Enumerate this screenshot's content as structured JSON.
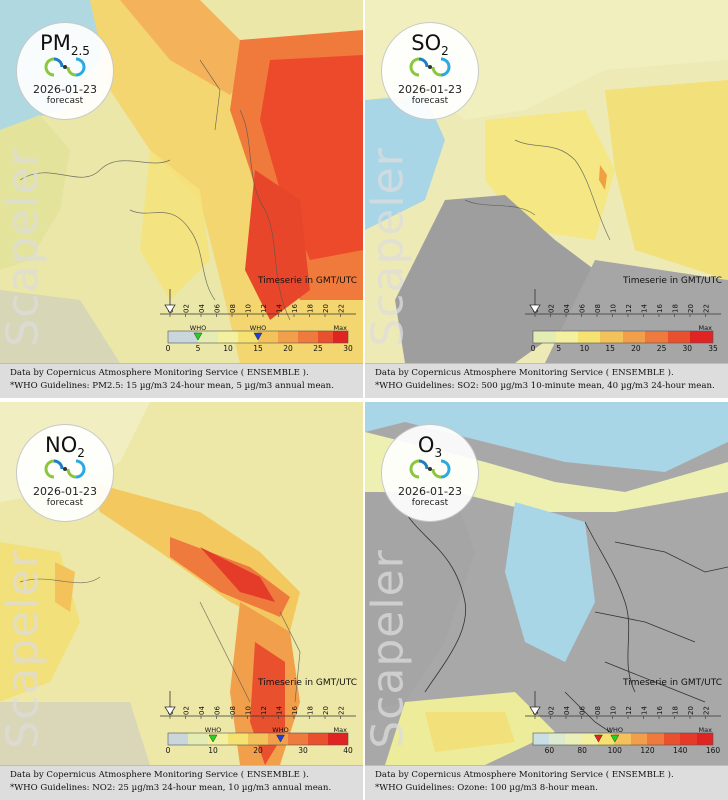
{
  "brand": "Scapeler",
  "timeserie_label": "Timeserie in GMT/UTC",
  "hours": [
    "00",
    "02",
    "04",
    "06",
    "08",
    "10",
    "12",
    "14",
    "16",
    "18",
    "20",
    "22"
  ],
  "panels": [
    {
      "pollutant_main": "PM",
      "pollutant_sub": "2.5",
      "date": "2026-01-23",
      "kind": "forecast",
      "max_label": "Max",
      "who_label": "WHO",
      "who2_label": "WHO",
      "ticks": [
        "0",
        "5",
        "10",
        "15",
        "20",
        "25",
        "30"
      ],
      "marker_green_value": 5,
      "marker_blue_value": 15,
      "attribution": "Data by Copernicus Atmosphere Monitoring Service ( ENSEMBLE ).",
      "guidelines": "*WHO Guidelines: PM2.5: 15 µg/m3 24-hour mean, 5 µg/m3 annual mean."
    },
    {
      "pollutant_main": "SO",
      "pollutant_sub": "2",
      "date": "2026-01-23",
      "kind": "forecast",
      "max_label": "Max",
      "ticks": [
        "0",
        "5",
        "10",
        "15",
        "20",
        "25",
        "30",
        "35"
      ],
      "attribution": "Data by Copernicus Atmosphere Monitoring Service ( ENSEMBLE ).",
      "guidelines": "*WHO Guidelines: SO2: 500 µg/m3 10-minute mean, 40 µg/m3 24-hour mean."
    },
    {
      "pollutant_main": "NO",
      "pollutant_sub": "2",
      "date": "2026-01-23",
      "kind": "forecast",
      "max_label": "Max",
      "who_label": "WHO",
      "who2_label": "WHO",
      "ticks": [
        "0",
        "10",
        "20",
        "30",
        "40"
      ],
      "marker_green_value": 10,
      "marker_blue_value": 25,
      "attribution": "Data by Copernicus Atmosphere Monitoring Service ( ENSEMBLE ).",
      "guidelines": "*WHO Guidelines: NO2: 25 µg/m3 24-hour mean, 10 µg/m3 annual mean."
    },
    {
      "pollutant_main": "O",
      "pollutant_sub": "3",
      "date": "2026-01-23",
      "kind": "forecast",
      "max_label": "Max",
      "who_label": "WHO",
      "ticks": [
        "60",
        "80",
        "100",
        "120",
        "140",
        "160"
      ],
      "marker_red_value": 90,
      "marker_green_value": 100,
      "attribution": "Data by Copernicus Atmosphere Monitoring Service ( ENSEMBLE ).",
      "guidelines": "*WHO Guidelines: Ozone: 100 µg/m3 8-hour mean."
    }
  ]
}
